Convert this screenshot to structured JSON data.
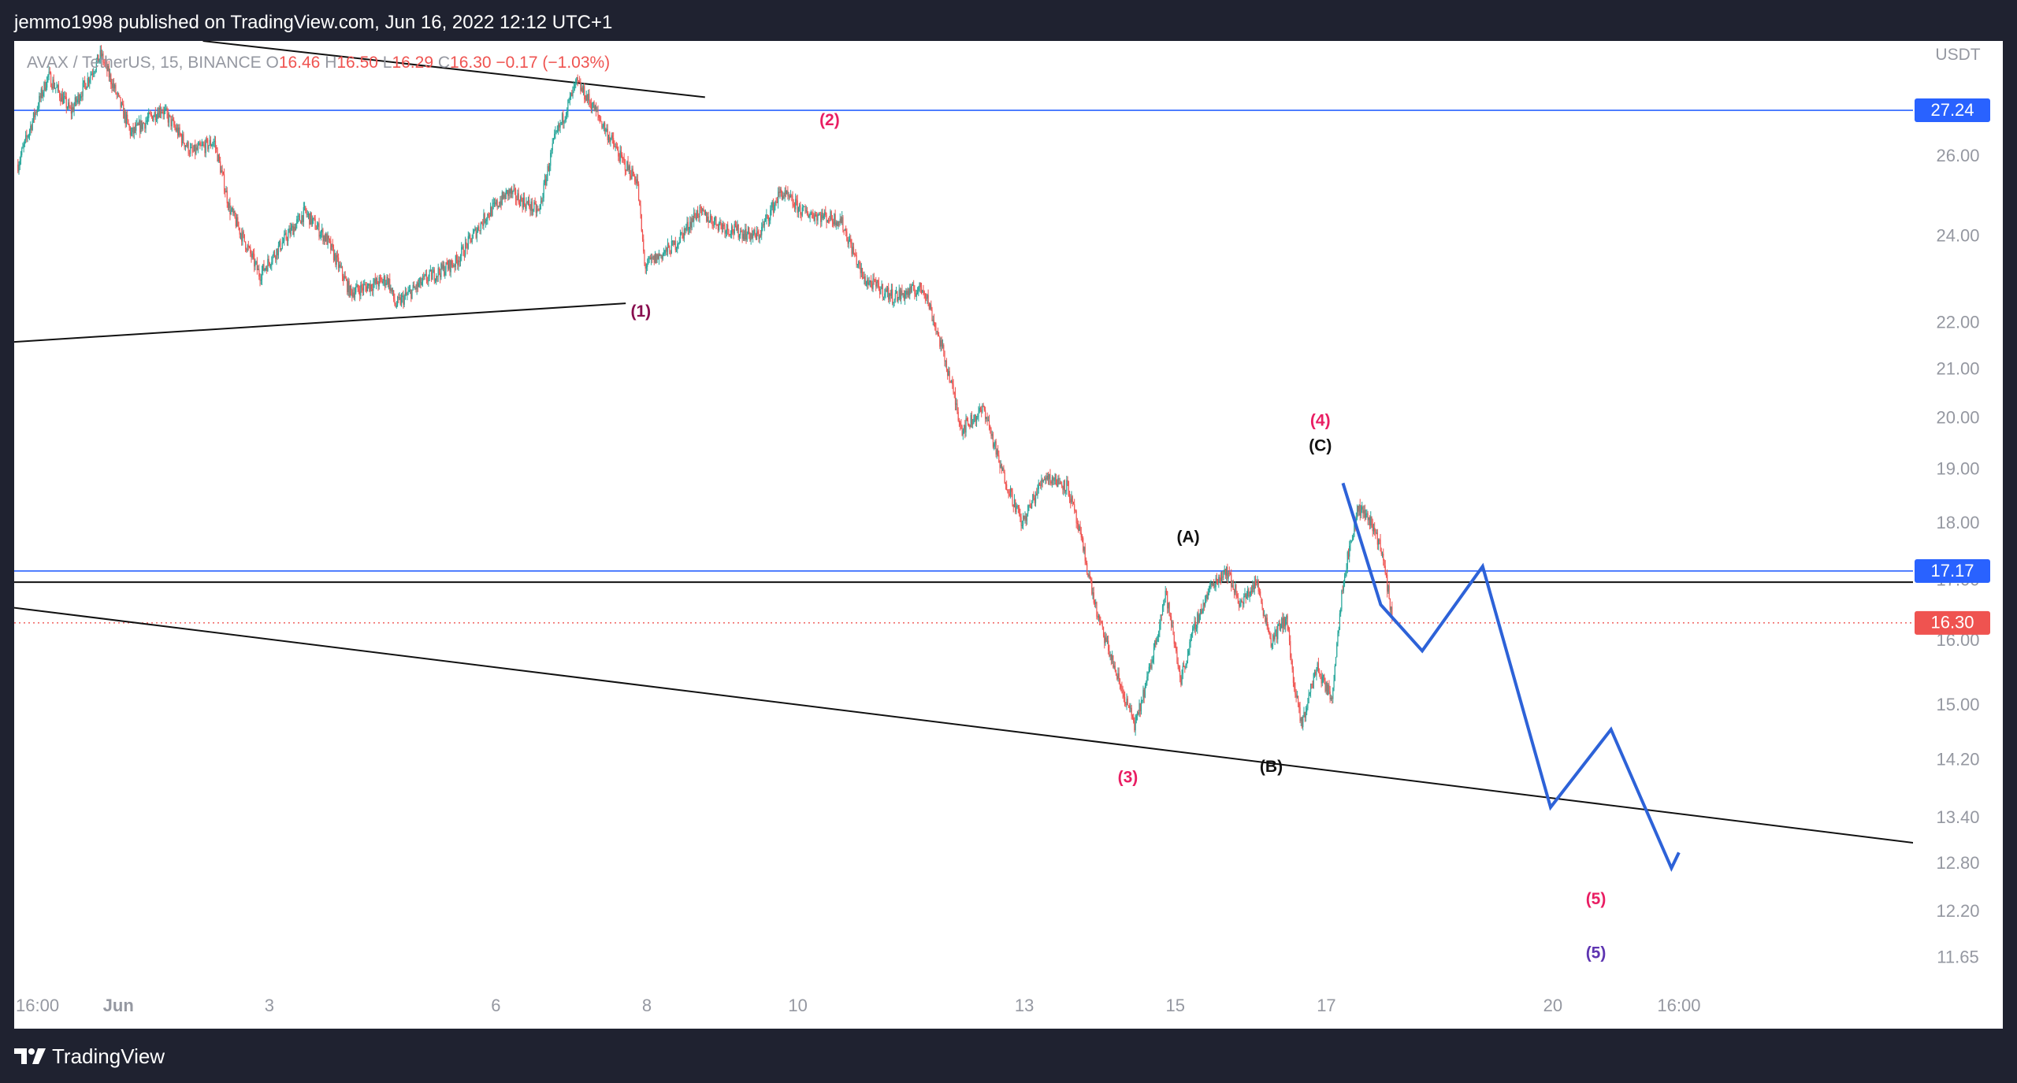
{
  "header": {
    "published_text": "jemmo1998 published on TradingView.com, Jun 16, 2022 12:12 UTC+1"
  },
  "footer": {
    "logo_text": "TradingView"
  },
  "colors": {
    "up": "#26a69a",
    "down": "#ef5350",
    "hline_blue": "#2962ff",
    "projection": "#2d62d8",
    "wave_pink": "#e91e63",
    "wave_dark_red": "#880e4f",
    "wave_purple": "#5e35b1",
    "price_label_red": "#ef5350"
  },
  "chart_data": {
    "type": "candlestick",
    "symbol_info": {
      "name": "AVAX / TetherUS, 15, BINANCE",
      "open_label": "O",
      "open": "16.46",
      "high_label": "H",
      "high": "16.50",
      "low_label": "L",
      "low": "16.29",
      "close_label": "C",
      "close": "16.30",
      "change": "−0.17 (−1.03%)"
    },
    "currency": "USDT",
    "y_scale": "log",
    "ylim": [
      11.4,
      29.2
    ],
    "y_ticks": [
      26.0,
      24.0,
      22.0,
      21.0,
      20.0,
      19.0,
      18.0,
      17.0,
      16.0,
      15.0,
      14.2,
      13.4,
      12.8,
      12.2,
      11.65
    ],
    "y_tick_labels": [
      "26.00",
      "24.00",
      "22.00",
      "21.00",
      "20.00",
      "19.00",
      "18.00",
      "17.00",
      "16.00",
      "15.00",
      "14.20",
      "13.40",
      "12.80",
      "12.20",
      "11.65"
    ],
    "x_unit": "days since May 30 2022 16:00",
    "xlim": [
      -0.05,
      25.1
    ],
    "x_ticks": [
      {
        "x": 0.0,
        "label": "16:00"
      },
      {
        "x": 1.33,
        "label": "Jun",
        "bold": true
      },
      {
        "x": 3.33,
        "label": "3"
      },
      {
        "x": 6.33,
        "label": "6"
      },
      {
        "x": 8.33,
        "label": "8"
      },
      {
        "x": 10.33,
        "label": "10"
      },
      {
        "x": 13.33,
        "label": "13"
      },
      {
        "x": 15.33,
        "label": "15"
      },
      {
        "x": 17.33,
        "label": "17"
      },
      {
        "x": 20.33,
        "label": "20"
      },
      {
        "x": 22.0,
        "label": "16:00"
      }
    ],
    "price_path": [
      [
        0.0,
        25.8
      ],
      [
        0.4,
        28.2
      ],
      [
        0.7,
        27.2
      ],
      [
        1.1,
        28.8
      ],
      [
        1.5,
        26.6
      ],
      [
        1.9,
        27.3
      ],
      [
        2.3,
        26.1
      ],
      [
        2.6,
        26.4
      ],
      [
        2.8,
        24.7
      ],
      [
        3.2,
        23.1
      ],
      [
        3.4,
        23.6
      ],
      [
        3.8,
        24.6
      ],
      [
        4.1,
        23.9
      ],
      [
        4.4,
        22.7
      ],
      [
        4.9,
        23.0
      ],
      [
        5.0,
        22.4
      ],
      [
        5.4,
        23.0
      ],
      [
        5.8,
        23.4
      ],
      [
        6.2,
        24.5
      ],
      [
        6.5,
        25.1
      ],
      [
        6.9,
        24.6
      ],
      [
        7.1,
        26.4
      ],
      [
        7.4,
        28.0
      ],
      [
        7.6,
        27.4
      ],
      [
        8.0,
        25.9
      ],
      [
        8.2,
        25.4
      ],
      [
        8.3,
        23.3
      ],
      [
        8.7,
        23.8
      ],
      [
        9.0,
        24.6
      ],
      [
        9.4,
        24.2
      ],
      [
        9.8,
        24.0
      ],
      [
        10.1,
        25.1
      ],
      [
        10.4,
        24.6
      ],
      [
        10.9,
        24.4
      ],
      [
        11.2,
        23.0
      ],
      [
        11.6,
        22.6
      ],
      [
        12.0,
        22.8
      ],
      [
        12.3,
        21.1
      ],
      [
        12.5,
        19.8
      ],
      [
        12.8,
        20.2
      ],
      [
        13.0,
        19.1
      ],
      [
        13.3,
        18.0
      ],
      [
        13.6,
        18.9
      ],
      [
        13.9,
        18.7
      ],
      [
        14.1,
        17.6
      ],
      [
        14.3,
        16.4
      ],
      [
        14.6,
        15.3
      ],
      [
        14.8,
        14.7
      ],
      [
        15.0,
        15.6
      ],
      [
        15.2,
        16.8
      ],
      [
        15.4,
        15.4
      ],
      [
        15.6,
        16.3
      ],
      [
        15.8,
        16.9
      ],
      [
        16.0,
        17.2
      ],
      [
        16.2,
        16.6
      ],
      [
        16.4,
        17.0
      ],
      [
        16.6,
        16.0
      ],
      [
        16.8,
        16.4
      ],
      [
        16.9,
        15.3
      ],
      [
        17.0,
        14.7
      ],
      [
        17.2,
        15.6
      ],
      [
        17.4,
        15.1
      ],
      [
        17.55,
        17.0
      ],
      [
        17.75,
        18.3
      ],
      [
        17.9,
        18.1
      ],
      [
        18.05,
        17.6
      ],
      [
        18.2,
        16.4
      ]
    ],
    "levels": [
      {
        "price": 27.24,
        "label": "27.24",
        "style": "blue",
        "label_bg": "#2962ff"
      },
      {
        "price": 17.17,
        "label": "17.17",
        "style": "blue",
        "label_bg": "#2962ff"
      },
      {
        "price": 16.3,
        "label": "16.30",
        "style": "dotted-red",
        "label_bg": "#ef5350"
      },
      {
        "price": 16.98,
        "label": "",
        "style": "black",
        "label_bg": ""
      }
    ],
    "trendlines": [
      {
        "x1": 2.45,
        "y1": 29.2,
        "x2": 9.1,
        "y2": 27.6
      },
      {
        "x1": -0.05,
        "y1": 21.6,
        "x2": 8.05,
        "y2": 22.45
      },
      {
        "x1": -0.05,
        "y1": 16.55,
        "x2": 26.15,
        "y2": 12.95
      }
    ],
    "projection": [
      [
        17.55,
        18.75
      ],
      [
        18.05,
        16.6
      ],
      [
        18.6,
        15.85
      ],
      [
        19.4,
        17.25
      ],
      [
        20.3,
        13.55
      ],
      [
        21.1,
        14.65
      ],
      [
        21.9,
        12.75
      ],
      [
        22.0,
        12.95
      ]
    ],
    "annotations": [
      {
        "text": "(1)",
        "x": 8.25,
        "y": 22.25,
        "color": "#880e4f"
      },
      {
        "text": "(2)",
        "x": 10.75,
        "y": 26.95,
        "color": "#e91e63"
      },
      {
        "text": "(3)",
        "x": 14.7,
        "y": 13.95,
        "color": "#e91e63"
      },
      {
        "text": "(4)",
        "x": 17.25,
        "y": 19.95,
        "color": "#e91e63"
      },
      {
        "text": "(C)",
        "x": 17.25,
        "y": 19.45,
        "color": "#111111"
      },
      {
        "text": "(A)",
        "x": 15.5,
        "y": 17.75,
        "color": "#111111"
      },
      {
        "text": "(B)",
        "x": 16.6,
        "y": 14.1,
        "color": "#111111"
      },
      {
        "text": "(5)",
        "x": 20.9,
        "y": 12.35,
        "color": "#e91e63"
      },
      {
        "text": "(5)",
        "x": 20.9,
        "y": 11.7,
        "color": "#5e35b1"
      }
    ]
  }
}
